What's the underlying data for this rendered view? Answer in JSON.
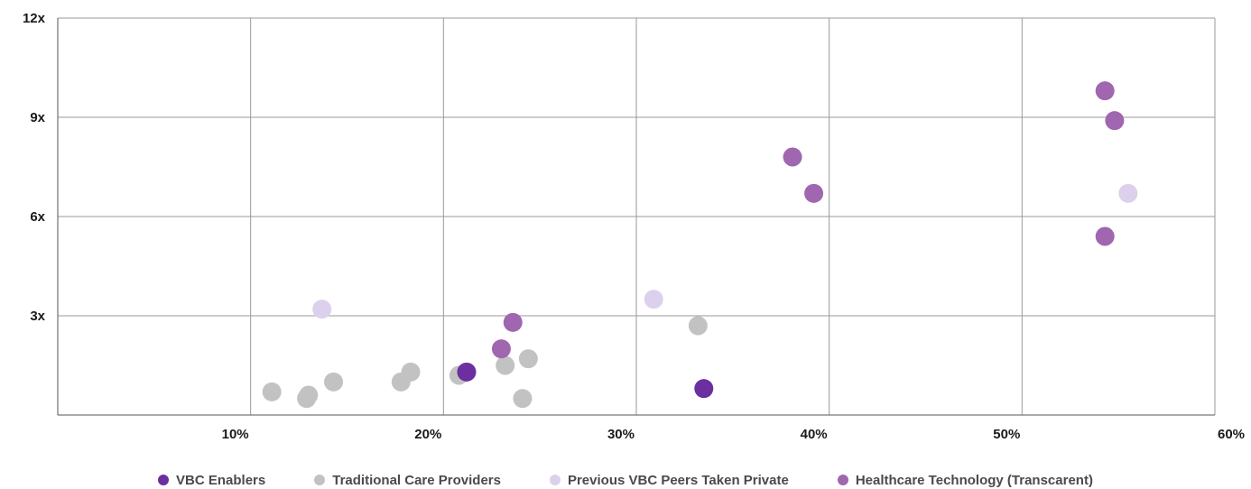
{
  "chart_data": {
    "type": "scatter",
    "title": "",
    "xlabel": "",
    "ylabel": "",
    "xlim": [
      0,
      60
    ],
    "ylim": [
      0,
      12
    ],
    "grid": true,
    "legend_position": "bottom",
    "x_ticks": [
      10,
      20,
      30,
      40,
      50,
      60
    ],
    "x_tick_labels": [
      "10%",
      "20%",
      "30%",
      "40%",
      "50%",
      "60%"
    ],
    "y_ticks": [
      3,
      6,
      9,
      12
    ],
    "y_tick_labels": [
      "3x",
      "6x",
      "9x",
      "12x"
    ],
    "series": [
      {
        "name": "VBC Enablers",
        "color": "#6b2fa0",
        "points": [
          {
            "x": 21.2,
            "y": 1.3
          },
          {
            "x": 33.5,
            "y": 0.8
          }
        ]
      },
      {
        "name": "Traditional Care Providers",
        "color": "#c2c2c2",
        "points": [
          {
            "x": 11.1,
            "y": 0.7
          },
          {
            "x": 12.9,
            "y": 0.5
          },
          {
            "x": 13.0,
            "y": 0.6
          },
          {
            "x": 14.3,
            "y": 1.0
          },
          {
            "x": 17.8,
            "y": 1.0
          },
          {
            "x": 18.3,
            "y": 1.3
          },
          {
            "x": 20.8,
            "y": 1.2
          },
          {
            "x": 23.2,
            "y": 1.5
          },
          {
            "x": 24.1,
            "y": 0.5
          },
          {
            "x": 24.4,
            "y": 1.7
          },
          {
            "x": 33.2,
            "y": 2.7
          }
        ]
      },
      {
        "name": "Previous VBC Peers Taken Private",
        "color": "#ddd0ec",
        "points": [
          {
            "x": 13.7,
            "y": 3.2
          },
          {
            "x": 30.9,
            "y": 3.5
          },
          {
            "x": 55.5,
            "y": 6.7
          }
        ]
      },
      {
        "name": "Healthcare Technology (Transcarent)",
        "color": "#a066b0",
        "points": [
          {
            "x": 23.0,
            "y": 2.0
          },
          {
            "x": 23.6,
            "y": 2.8
          },
          {
            "x": 38.1,
            "y": 7.8
          },
          {
            "x": 39.2,
            "y": 6.7
          },
          {
            "x": 54.3,
            "y": 9.8
          },
          {
            "x": 54.3,
            "y": 5.4
          },
          {
            "x": 54.8,
            "y": 8.9
          }
        ]
      }
    ]
  }
}
